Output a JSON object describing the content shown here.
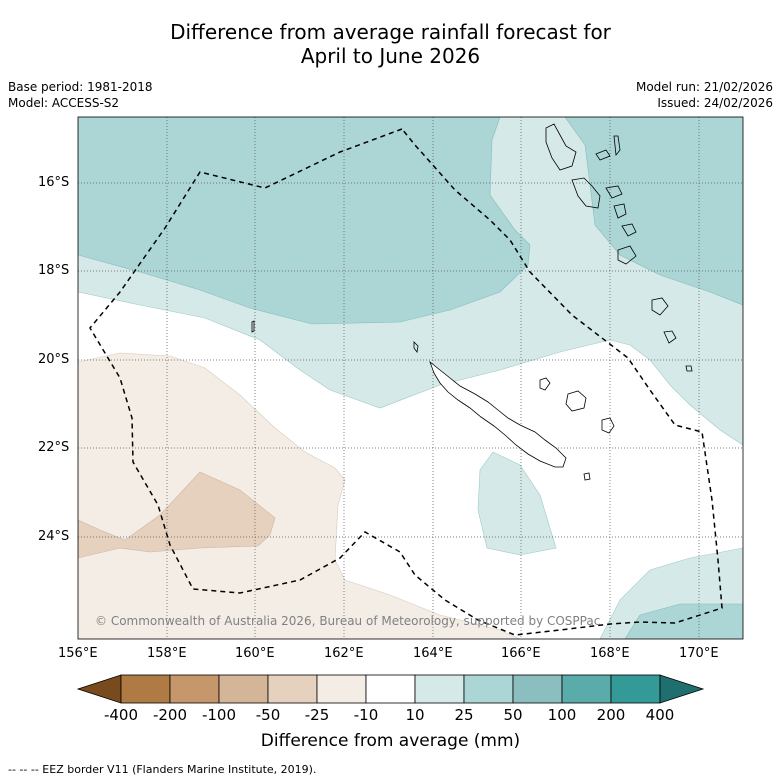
{
  "title_line1": "Difference from average rainfall forecast for",
  "title_line2": "April to June 2026",
  "meta_left": [
    "Base period: 1981-2018",
    "Model: ACCESS-S2"
  ],
  "meta_right": [
    "Model run: 21/02/2026",
    "Issued: 24/02/2026"
  ],
  "copyright": "© Commonwealth of Australia 2026, Bureau of Meteorology, supported by COSPPac",
  "lat_ticks": [
    "16°S",
    "18°S",
    "20°S",
    "22°S",
    "24°S"
  ],
  "lon_ticks": [
    "156°E",
    "158°E",
    "160°E",
    "162°E",
    "164°E",
    "166°E",
    "168°E",
    "170°E"
  ],
  "colorbar": {
    "labels": [
      "-400",
      "-200",
      "-100",
      "-50",
      "-25",
      "-10",
      "10",
      "25",
      "50",
      "100",
      "200",
      "400"
    ],
    "colors": [
      "#7a4a1f",
      "#b07a44",
      "#c6976b",
      "#d5b597",
      "#e6d1bf",
      "#f4ede6",
      "#ffffff",
      "#d5e9e8",
      "#acd6d5",
      "#8bbfbf",
      "#5aacab",
      "#349a97",
      "#1e6f6d"
    ],
    "title": "Difference from average (mm)"
  },
  "footer": "-- -- -- EEZ border V11 (Flanders Marine Institute, 2019)."
}
